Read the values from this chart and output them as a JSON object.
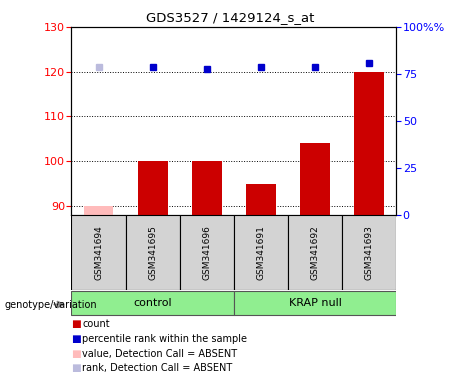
{
  "title": "GDS3527 / 1429124_s_at",
  "samples": [
    "GSM341694",
    "GSM341695",
    "GSM341696",
    "GSM341691",
    "GSM341692",
    "GSM341693"
  ],
  "bar_values": [
    90,
    100,
    100,
    95,
    104,
    120
  ],
  "bar_absent": [
    true,
    false,
    false,
    false,
    false,
    false
  ],
  "rank_values": [
    121,
    121,
    120.5,
    121,
    121,
    122
  ],
  "rank_absent": [
    true,
    false,
    false,
    false,
    false,
    false
  ],
  "ylim_left": [
    88,
    130
  ],
  "ylim_right": [
    0,
    100
  ],
  "yticks_left": [
    90,
    100,
    110,
    120,
    130
  ],
  "yticks_right": [
    0,
    25,
    50,
    75,
    100
  ],
  "bar_color": "#cc0000",
  "bar_absent_color": "#ffbbbb",
  "rank_color": "#0000cc",
  "rank_absent_color": "#bbbbdd",
  "bar_width": 0.55,
  "legend_items": [
    {
      "label": "count",
      "color": "#cc0000"
    },
    {
      "label": "percentile rank within the sample",
      "color": "#0000cc"
    },
    {
      "label": "value, Detection Call = ABSENT",
      "color": "#ffbbbb"
    },
    {
      "label": "rank, Detection Call = ABSENT",
      "color": "#bbbbdd"
    }
  ],
  "group_defs": [
    {
      "label": "control",
      "start": 0,
      "end": 2
    },
    {
      "label": "KRAP null",
      "start": 3,
      "end": 5
    }
  ],
  "group_color": "#90ee90",
  "sample_box_color": "#d3d3d3",
  "xlabel_bottom": "genotype/variation",
  "grid_color": "black",
  "plot_bg": "#ffffff"
}
